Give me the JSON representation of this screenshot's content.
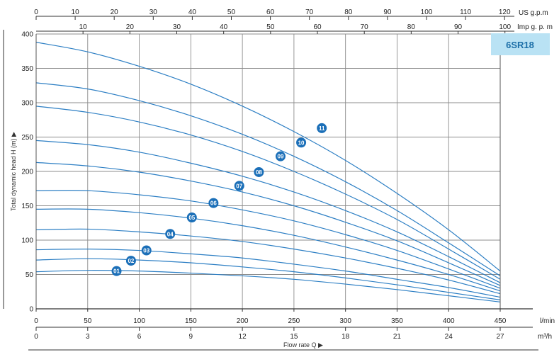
{
  "chart_data": {
    "type": "line",
    "model_label": "6SR18",
    "xlabel": "Flow rate Q ▶",
    "ylabel": "Total dynamic head H (m) ▶",
    "x_units": {
      "lmin": "l/min",
      "m3h": "m³/h",
      "usgpm": "US g.p.m",
      "impgpm": "Imp g. p. m"
    },
    "xlim": [
      0,
      450
    ],
    "ylim": [
      0,
      400
    ],
    "x_ticks_lmin": [
      "0",
      "50",
      "100",
      "150",
      "200",
      "250",
      "300",
      "350",
      "400",
      "450"
    ],
    "x_ticks_m3h": [
      "0",
      "3",
      "6",
      "9",
      "12",
      "15",
      "18",
      "21",
      "24",
      "27"
    ],
    "x_ticks_usgpm": [
      "0",
      "10",
      "20",
      "30",
      "40",
      "50",
      "60",
      "70",
      "80",
      "90",
      "100",
      "110",
      "120"
    ],
    "x_ticks_impgpm": [
      "10",
      "20",
      "30",
      "40",
      "50",
      "60",
      "70",
      "80",
      "90",
      "100"
    ],
    "y_ticks": [
      "0",
      "50",
      "100",
      "150",
      "200",
      "250",
      "300",
      "350",
      "400"
    ],
    "grid": true,
    "x": [
      0,
      50,
      100,
      150,
      200,
      250,
      300,
      350,
      400,
      450
    ],
    "series": [
      {
        "name": "01",
        "values": [
          54,
          56,
          55,
          52,
          48,
          43,
          36,
          28,
          19,
          10
        ],
        "label_at": [
          78,
          55
        ]
      },
      {
        "name": "02",
        "values": [
          71,
          73,
          71,
          67,
          61,
          54,
          45,
          35,
          24,
          13
        ],
        "label_at": [
          92,
          70
        ]
      },
      {
        "name": "03",
        "values": [
          86,
          87,
          85,
          80,
          74,
          65,
          55,
          43,
          31,
          17
        ],
        "label_at": [
          107,
          85
        ]
      },
      {
        "name": "04",
        "values": [
          115,
          116,
          112,
          106,
          98,
          87,
          74,
          59,
          42,
          22
        ],
        "label_at": [
          130,
          109
        ]
      },
      {
        "name": "05",
        "values": [
          145,
          145,
          140,
          132,
          121,
          107,
          90,
          71,
          50,
          26
        ],
        "label_at": [
          151,
          133
        ]
      },
      {
        "name": "06",
        "values": [
          172,
          172,
          166,
          157,
          144,
          128,
          108,
          85,
          58,
          30
        ],
        "label_at": [
          172,
          154
        ]
      },
      {
        "name": "07",
        "values": [
          213,
          208,
          199,
          186,
          170,
          150,
          126,
          99,
          67,
          34
        ],
        "label_at": [
          197,
          179
        ]
      },
      {
        "name": "08",
        "values": [
          245,
          239,
          228,
          212,
          193,
          170,
          143,
          112,
          76,
          38
        ],
        "label_at": [
          216,
          199
        ]
      },
      {
        "name": "09",
        "values": [
          295,
          286,
          272,
          253,
          229,
          200,
          167,
          130,
          87,
          43
        ],
        "label_at": [
          237,
          222
        ]
      },
      {
        "name": "10",
        "values": [
          329,
          320,
          303,
          281,
          254,
          222,
          185,
          143,
          96,
          48
        ],
        "label_at": [
          257,
          242
        ]
      },
      {
        "name": "11",
        "values": [
          388,
          374,
          353,
          327,
          295,
          258,
          216,
          168,
          115,
          55
        ],
        "label_at": [
          277,
          263
        ]
      }
    ],
    "colors": {
      "line": "#2d7fc4",
      "badge": "#1b6fb8",
      "grid": "#8c8c8c",
      "model_box": "#b9e2f4"
    }
  }
}
